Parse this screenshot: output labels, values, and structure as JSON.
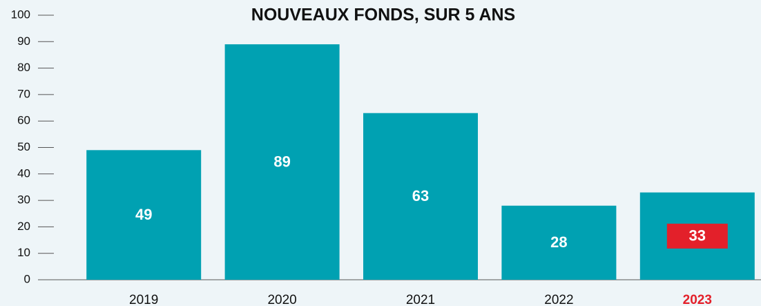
{
  "chart_data": {
    "type": "bar",
    "title": "NOUVEAUX FONDS, SUR 5 ANS",
    "categories": [
      "2019",
      "2020",
      "2021",
      "2022",
      "2023"
    ],
    "values": [
      49,
      89,
      63,
      28,
      33
    ],
    "color": "#00a1b2",
    "highlight_index": 4,
    "highlight_color": "#e3202a",
    "ylim": [
      0,
      100
    ],
    "yticks": [
      0,
      10,
      20,
      30,
      40,
      50,
      60,
      70,
      80,
      90,
      100
    ],
    "grid": false
  }
}
